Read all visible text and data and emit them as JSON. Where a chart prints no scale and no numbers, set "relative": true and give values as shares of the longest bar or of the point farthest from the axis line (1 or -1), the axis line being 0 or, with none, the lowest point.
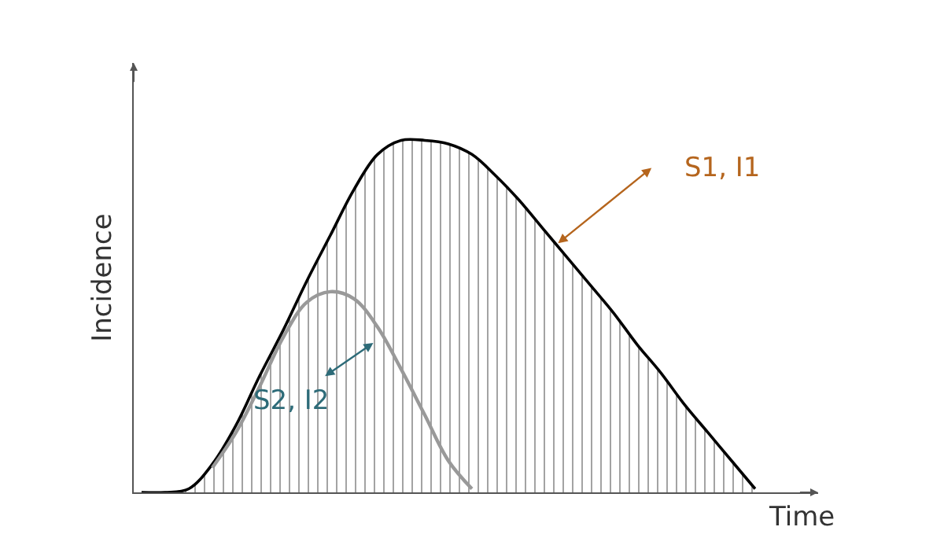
{
  "chart_data": {
    "type": "line",
    "relative": true,
    "xlabel": "Time",
    "ylabel": "Incidence",
    "categories": [
      null,
      null,
      null,
      null,
      null,
      null,
      null,
      null,
      null,
      null,
      null,
      null,
      null,
      null,
      null,
      null,
      null,
      null,
      null,
      null,
      null,
      null,
      null,
      null,
      null,
      null,
      null
    ],
    "series": [
      {
        "type": "area",
        "color": "#000000",
        "values": [
          0,
          0,
          0.01,
          0.08,
          0.19,
          0.33,
          0.46,
          0.6,
          0.73,
          0.86,
          0.96,
          1,
          1,
          0.99,
          0.96,
          0.9,
          0.83,
          0.75,
          0.67,
          0.59,
          0.51,
          0.42,
          0.34,
          0.25,
          0.17,
          0.09,
          0.01
        ]
      },
      {
        "color": "#999999",
        "values": [
          null,
          null,
          null,
          0.07,
          0.17,
          0.3,
          0.44,
          0.54,
          0.57,
          0.55,
          0.47,
          0.35,
          0.22,
          0.09,
          0.01,
          null,
          null,
          null,
          null,
          null,
          null,
          null,
          null,
          null,
          null,
          null,
          null
        ]
      }
    ],
    "annotations": [
      "S1, I1",
      "S2, I2"
    ],
    "marker": "none",
    "line_style": "solid"
  }
}
